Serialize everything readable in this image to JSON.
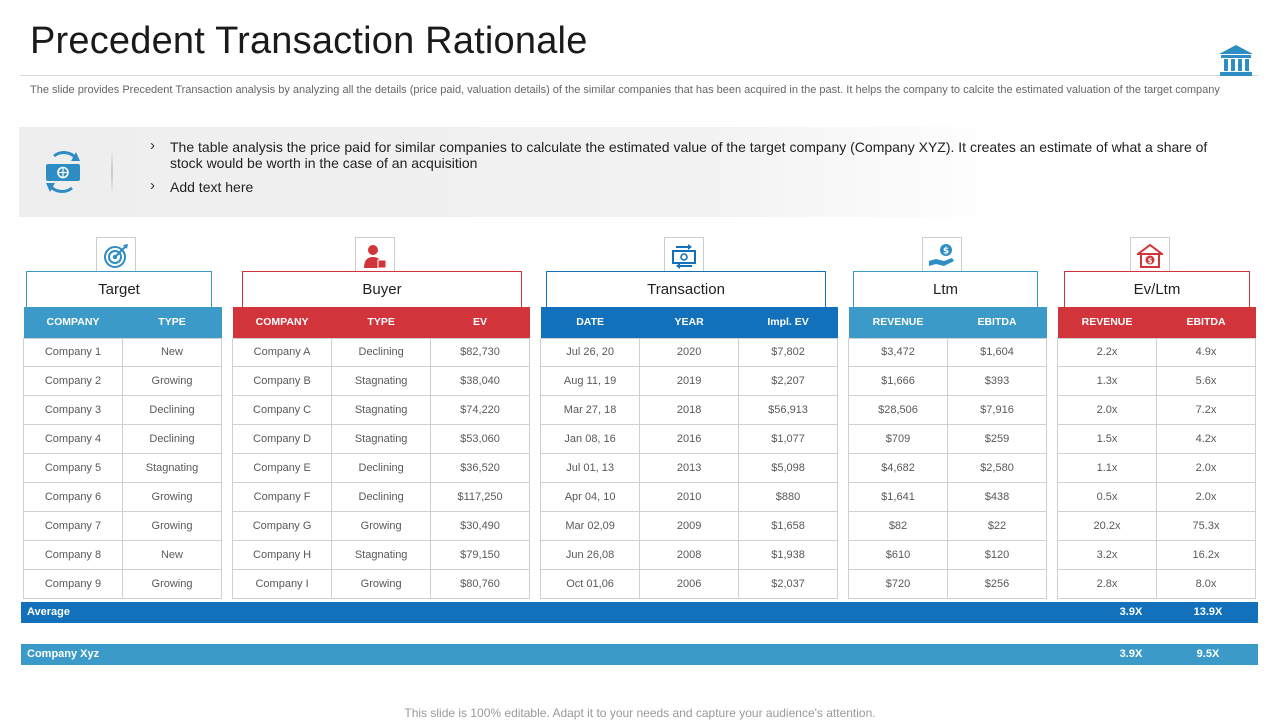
{
  "title": "Precedent Transaction Rationale",
  "subtitle": "The slide provides Precedent Transaction analysis by analyzing all the details (price paid, valuation details) of the similar companies that has been acquired in the past. It helps the company to calcite the estimated valuation of the target company",
  "bullets": [
    "The table analysis the price paid for similar companies to calculate the estimated value of the target company (Company XYZ). It creates an estimate of what a share of stock would be worth in the case of an acquisition",
    "Add text here"
  ],
  "icons": {
    "header": "bank-icon",
    "info": "money-exchange-icon",
    "target": "target-icon",
    "buyer": "buyer-icon",
    "transaction": "money-transfer-icon",
    "ltm": "dollar-hand-icon",
    "evltm": "house-dollar-icon"
  },
  "colors": {
    "blue": "#3b9ac8",
    "red": "#d1343a",
    "dark_blue": "#1271ba"
  },
  "sections": {
    "target": {
      "label": "Target",
      "headers": [
        "COMPANY",
        "TYPE"
      ],
      "rows": [
        [
          "Company 1",
          "New"
        ],
        [
          "Company 2",
          "Growing"
        ],
        [
          "Company 3",
          "Declining"
        ],
        [
          "Company 4",
          "Declining"
        ],
        [
          "Company 5",
          "Stagnating"
        ],
        [
          "Company 6",
          "Growing"
        ],
        [
          "Company 7",
          "Growing"
        ],
        [
          "Company 8",
          "New"
        ],
        [
          "Company 9",
          "Growing"
        ]
      ]
    },
    "buyer": {
      "label": "Buyer",
      "headers": [
        "COMPANY",
        "TYPE",
        "EV"
      ],
      "rows": [
        [
          "Company A",
          "Declining",
          "$82,730"
        ],
        [
          "Company B",
          "Stagnating",
          "$38,040"
        ],
        [
          "Company C",
          "Stagnating",
          "$74,220"
        ],
        [
          "Company D",
          "Stagnating",
          "$53,060"
        ],
        [
          "Company E",
          "Declining",
          "$36,520"
        ],
        [
          "Company F",
          "Declining",
          "$117,250"
        ],
        [
          "Company G",
          "Growing",
          "$30,490"
        ],
        [
          "Company H",
          "Stagnating",
          "$79,150"
        ],
        [
          "Company I",
          "Growing",
          "$80,760"
        ]
      ]
    },
    "transaction": {
      "label": "Transaction",
      "headers": [
        "DATE",
        "YEAR",
        "Impl. EV"
      ],
      "rows": [
        [
          "Jul 26, 20",
          "2020",
          "$7,802"
        ],
        [
          "Aug 11, 19",
          "2019",
          "$2,207"
        ],
        [
          "Mar 27, 18",
          "2018",
          "$56,913"
        ],
        [
          "Jan 08, 16",
          "2016",
          "$1,077"
        ],
        [
          "Jul 01, 13",
          "2013",
          "$5,098"
        ],
        [
          "Apr 04, 10",
          "2010",
          "$880"
        ],
        [
          "Mar 02,09",
          "2009",
          "$1,658"
        ],
        [
          "Jun 26,08",
          "2008",
          "$1,938"
        ],
        [
          "Oct 01,06",
          "2006",
          "$2,037"
        ]
      ]
    },
    "ltm": {
      "label": "Ltm",
      "headers": [
        "REVENUE",
        "EBITDA"
      ],
      "rows": [
        [
          "$3,472",
          "$1,604"
        ],
        [
          "$1,666",
          "$393"
        ],
        [
          "$28,506",
          "$7,916"
        ],
        [
          "$709",
          "$259"
        ],
        [
          "$4,682",
          "$2,580"
        ],
        [
          "$1,641",
          "$438"
        ],
        [
          "$82",
          "$22"
        ],
        [
          "$610",
          "$120"
        ],
        [
          "$720",
          "$256"
        ]
      ]
    },
    "evltm": {
      "label": "Ev/Ltm",
      "headers": [
        "REVENUE",
        "EBITDA"
      ],
      "rows": [
        [
          "2.2x",
          "4.9x"
        ],
        [
          "1.3x",
          "5.6x"
        ],
        [
          "2.0x",
          "7.2x"
        ],
        [
          "1.5x",
          "4.2x"
        ],
        [
          "1.1x",
          "2.0x"
        ],
        [
          "0.5x",
          "2.0x"
        ],
        [
          "20.2x",
          "75.3x"
        ],
        [
          "3.2x",
          "16.2x"
        ],
        [
          "2.8x",
          "8.0x"
        ]
      ]
    }
  },
  "average": {
    "label": "Average",
    "revenue": "3.9X",
    "ebitda": "13.9X"
  },
  "company_xyz": {
    "label": "Company Xyz",
    "revenue": "3.9X",
    "ebitda": "9.5X"
  },
  "footer": "This slide is 100% editable. Adapt it to your needs and capture your audience's attention."
}
